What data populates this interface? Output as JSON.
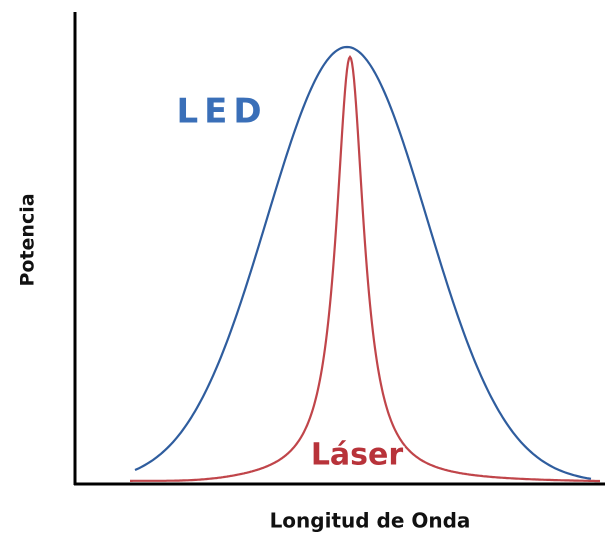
{
  "diagram": {
    "y_axis_label": "Potencia",
    "x_axis_label": "Longitud de Onda",
    "curves": [
      {
        "label": "LED"
      },
      {
        "label": "Láser"
      }
    ]
  }
}
